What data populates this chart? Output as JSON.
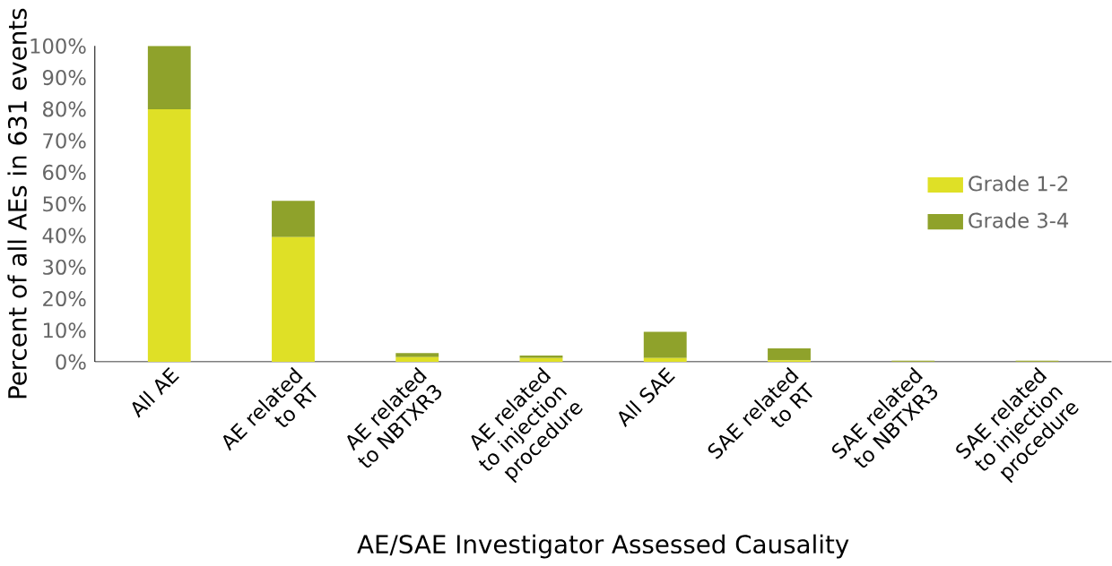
{
  "chart_data": {
    "type": "bar",
    "stacked": true,
    "xlabel": "AE/SAE Investigator Assessed Causality",
    "ylabel": "Percent of all AEs in 631 events",
    "categories": [
      "All AE",
      "AE related to RT",
      "AE related to NBTXR3",
      "AE related to injection procedure",
      "All SAE",
      "SAE related to RT",
      "SAE related to NBTXR3",
      "SAE related to injection procedure"
    ],
    "series": [
      {
        "name": "Grade 1-2",
        "color": "#dfe026",
        "values": [
          80,
          39.5,
          1.5,
          1.2,
          1.2,
          0.5,
          0.1,
          0.1
        ]
      },
      {
        "name": "Grade 3-4",
        "color": "#8fa22b",
        "values": [
          20,
          11.5,
          1.3,
          0.8,
          8.3,
          3.8,
          0.3,
          0.3
        ]
      }
    ],
    "ylim": [
      0,
      100
    ],
    "yticks": [
      {
        "value": 0,
        "label": "0%"
      },
      {
        "value": 10,
        "label": "10%"
      },
      {
        "value": 20,
        "label": "20%"
      },
      {
        "value": 30,
        "label": "30%"
      },
      {
        "value": 40,
        "label": "40%"
      },
      {
        "value": 50,
        "label": "50%"
      },
      {
        "value": 60,
        "label": "60%"
      },
      {
        "value": 70,
        "label": "70%"
      },
      {
        "value": 80,
        "label": "80%"
      },
      {
        "value": 90,
        "label": "90%"
      },
      {
        "value": 100,
        "label": "100%"
      }
    ],
    "grid": false,
    "legend": "right"
  }
}
